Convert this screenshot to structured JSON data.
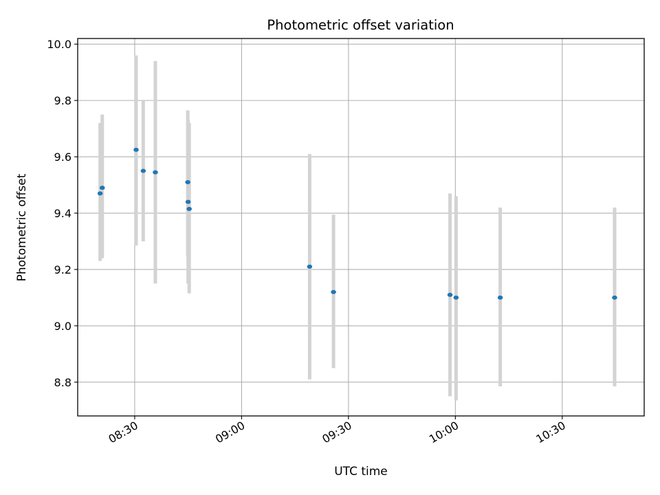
{
  "chart_data": {
    "type": "scatter",
    "title": "Photometric offset variation",
    "xlabel": "UTC time",
    "ylabel": "Photometric offset",
    "x_axis": {
      "kind": "time",
      "format": "HH:MM",
      "range": [
        "08:14",
        "10:53"
      ]
    },
    "ylim": [
      8.68,
      10.02
    ],
    "grid": true,
    "x_ticks": [
      "08:30",
      "09:00",
      "09:30",
      "10:00",
      "10:30"
    ],
    "y_ticks": [
      "8.8",
      "9.0",
      "9.2",
      "9.4",
      "9.6",
      "9.8",
      "10.0"
    ],
    "series": [
      {
        "marker_color": "#1f77b4",
        "errorbar_color": "#d3d3d3",
        "points": [
          {
            "time": "08:20:18",
            "y": 9.47,
            "ylow": 9.23,
            "yhigh": 9.72
          },
          {
            "time": "08:20:54",
            "y": 9.49,
            "ylow": 9.24,
            "yhigh": 9.75
          },
          {
            "time": "08:30:24",
            "y": 9.625,
            "ylow": 9.285,
            "yhigh": 9.96
          },
          {
            "time": "08:32:24",
            "y": 9.55,
            "ylow": 9.3,
            "yhigh": 9.8
          },
          {
            "time": "08:35:48",
            "y": 9.545,
            "ylow": 9.15,
            "yhigh": 9.94
          },
          {
            "time": "08:44:54",
            "y": 9.51,
            "ylow": 9.25,
            "yhigh": 9.765
          },
          {
            "time": "08:45:00",
            "y": 9.44,
            "ylow": 9.15,
            "yhigh": 9.73
          },
          {
            "time": "08:45:18",
            "y": 9.415,
            "ylow": 9.115,
            "yhigh": 9.72
          },
          {
            "time": "09:19:06",
            "y": 9.21,
            "ylow": 8.81,
            "yhigh": 9.61
          },
          {
            "time": "09:25:48",
            "y": 9.12,
            "ylow": 8.85,
            "yhigh": 9.395
          },
          {
            "time": "09:58:30",
            "y": 9.11,
            "ylow": 8.75,
            "yhigh": 9.47
          },
          {
            "time": "10:00:12",
            "y": 9.1,
            "ylow": 8.735,
            "yhigh": 9.46
          },
          {
            "time": "10:12:36",
            "y": 9.1,
            "ylow": 8.785,
            "yhigh": 9.42
          },
          {
            "time": "10:44:42",
            "y": 9.1,
            "ylow": 8.785,
            "yhigh": 9.42
          }
        ]
      }
    ]
  }
}
